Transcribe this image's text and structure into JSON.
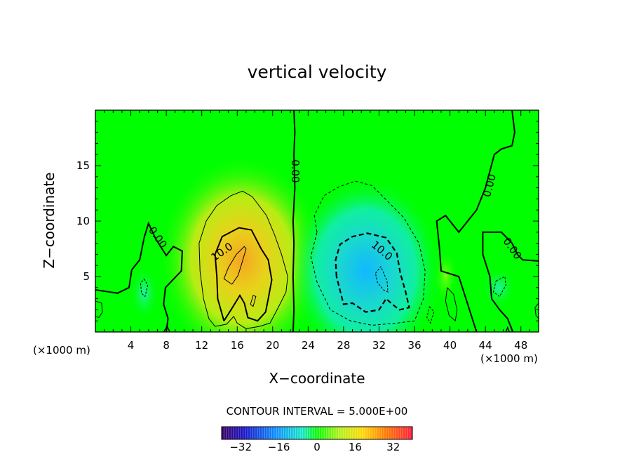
{
  "chart_data": {
    "type": "heatmap",
    "title": "vertical velocity",
    "xlabel": "X−coordinate",
    "ylabel": "Z−coordinate",
    "x_unit_left": "(×1000 m)",
    "x_unit_right": "(×1000 m)",
    "xlim": [
      0,
      50
    ],
    "ylim": [
      0,
      20
    ],
    "x_ticks": [
      4,
      8,
      12,
      16,
      20,
      24,
      28,
      32,
      36,
      40,
      44,
      48
    ],
    "x_tick_labels": [
      "4",
      "8",
      "12",
      "16",
      "20",
      "24",
      "28",
      "32",
      "36",
      "40",
      "44",
      "48"
    ],
    "y_ticks": [
      5,
      10,
      15
    ],
    "y_tick_labels": [
      "5",
      "10",
      "15"
    ],
    "contour_interval_label": "CONTOUR INTERVAL = 5.000E+00",
    "contour_labels": [
      {
        "text": "0.00",
        "x": 22.5,
        "y": 14.5
      },
      {
        "text": "0.00",
        "x": 7,
        "y": 8.5
      },
      {
        "text": "10.0",
        "x": 14.3,
        "y": 7.2
      },
      {
        "text": "10.0",
        "x": 32.3,
        "y": 7.3
      },
      {
        "text": "0.00",
        "x": 44.5,
        "y": 13.2
      },
      {
        "text": "0.00",
        "x": 47,
        "y": 7.5
      }
    ],
    "features": [
      {
        "name": "updraft",
        "x": 16,
        "z": 6,
        "peak": 19
      },
      {
        "name": "downdraft",
        "x": 31,
        "z": 5,
        "peak": -14
      }
    ],
    "colorbar": {
      "min": -40,
      "max": 40,
      "ticks": [
        -32,
        -16,
        0,
        16,
        32
      ],
      "tick_labels": [
        "−32",
        "−16",
        "0",
        "16",
        "32"
      ]
    }
  }
}
